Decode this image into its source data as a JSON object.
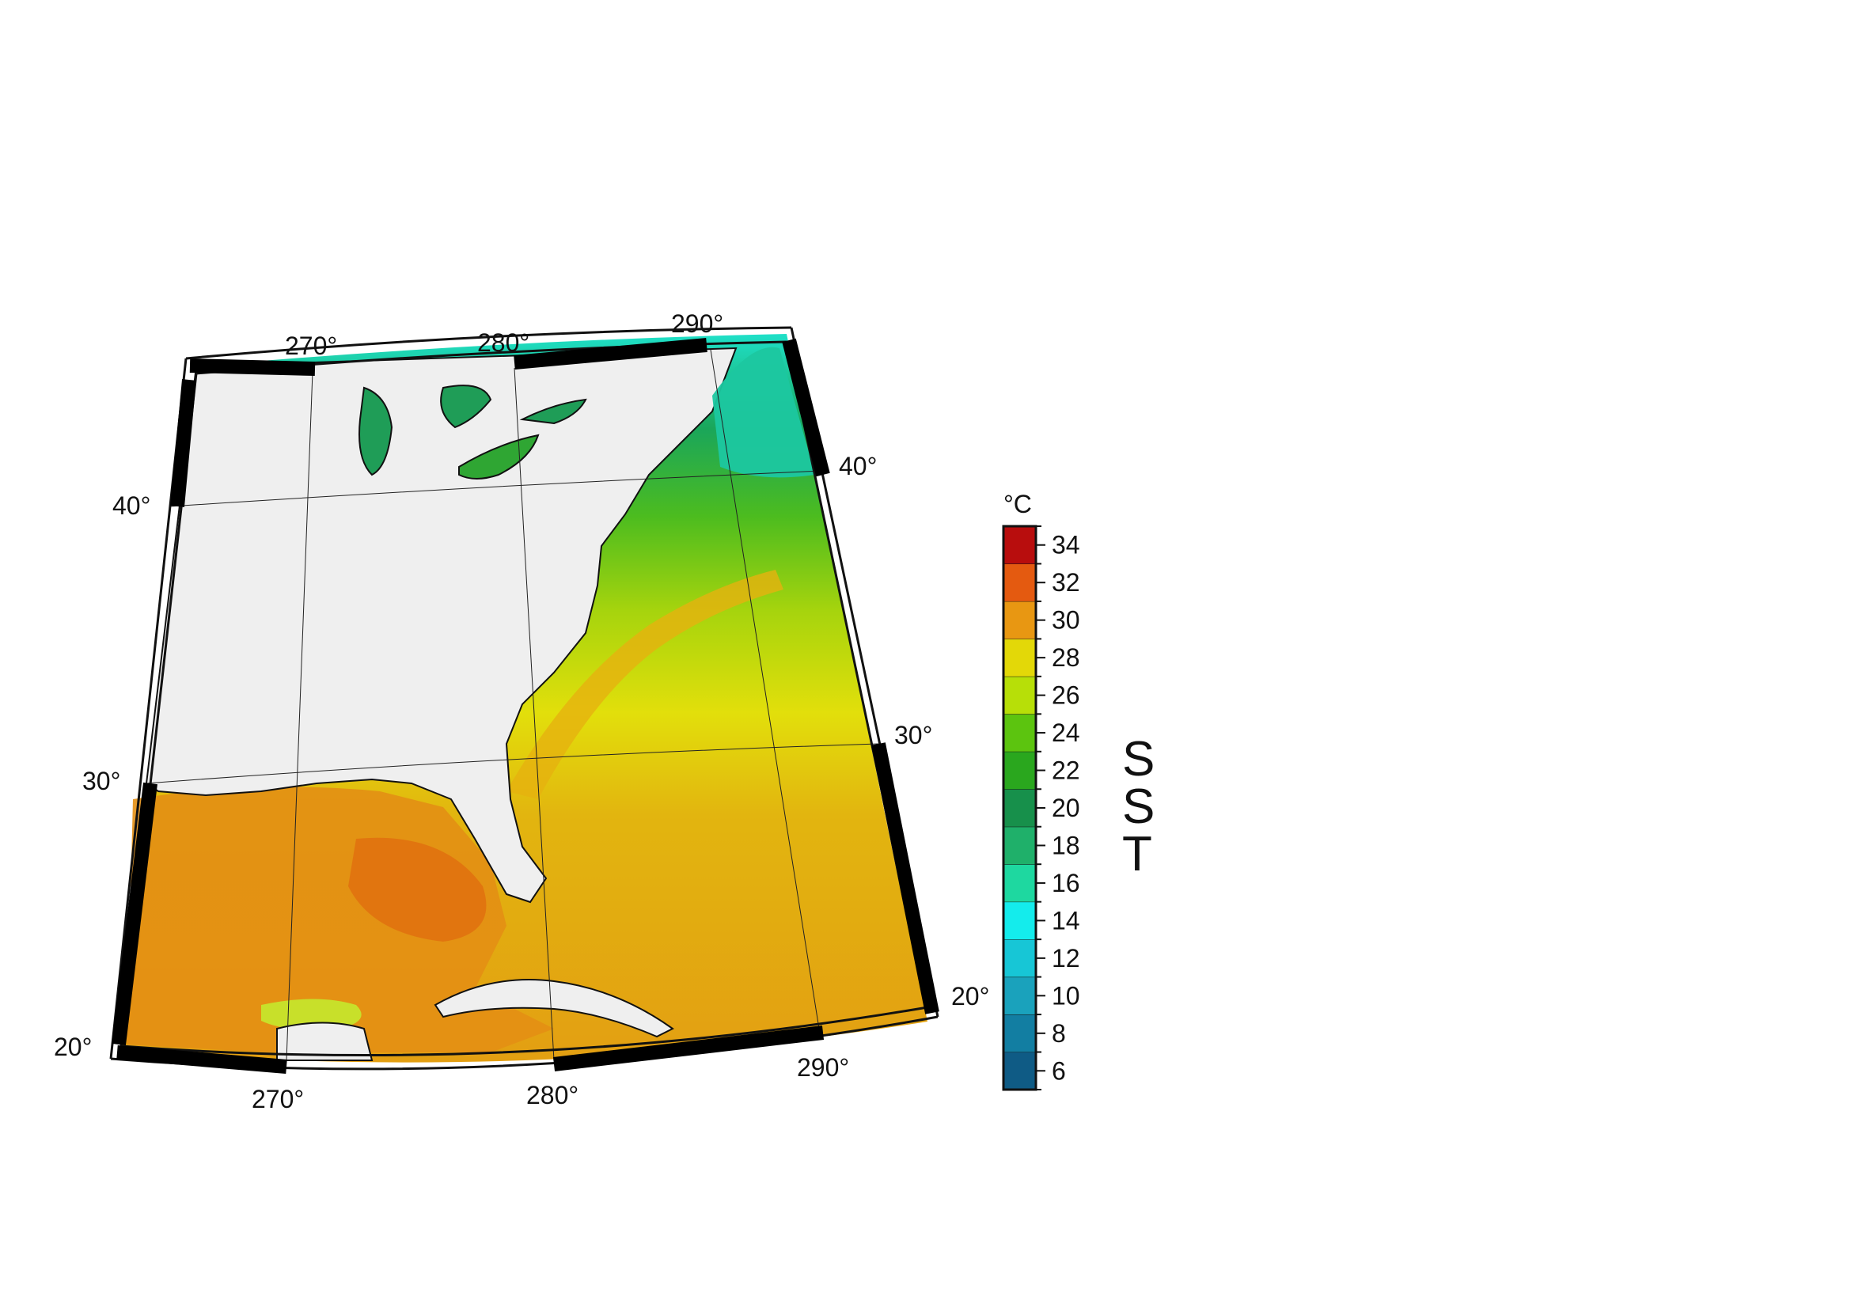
{
  "map": {
    "longitude_labels_top": [
      "270°",
      "280°",
      "290°"
    ],
    "longitude_labels_bottom": [
      "270°",
      "280°",
      "290°"
    ],
    "latitude_labels_left": [
      "40°",
      "30°",
      "20°"
    ],
    "latitude_labels_right": [
      "40°",
      "30°",
      "20°"
    ],
    "land_color": "#efefef",
    "coast_color": "#111111"
  },
  "colorbar": {
    "unit": "°C",
    "title_letters": [
      "S",
      "S",
      "T"
    ],
    "tick_labels": [
      "34",
      "32",
      "30",
      "28",
      "26",
      "24",
      "22",
      "20",
      "18",
      "16",
      "14",
      "12",
      "10",
      "8",
      "6"
    ],
    "min": 5,
    "max": 35,
    "colors": [
      {
        "from": 5,
        "to": 7,
        "color": "#0f5b85"
      },
      {
        "from": 7,
        "to": 9,
        "color": "#127ea2"
      },
      {
        "from": 9,
        "to": 11,
        "color": "#1aa2bc"
      },
      {
        "from": 11,
        "to": 13,
        "color": "#17c6d6"
      },
      {
        "from": 13,
        "to": 15,
        "color": "#14ecec"
      },
      {
        "from": 15,
        "to": 17,
        "color": "#1ed8a0"
      },
      {
        "from": 17,
        "to": 19,
        "color": "#1fb06a"
      },
      {
        "from": 19,
        "to": 21,
        "color": "#17904b"
      },
      {
        "from": 21,
        "to": 23,
        "color": "#2aa71e"
      },
      {
        "from": 23,
        "to": 25,
        "color": "#5cc40f"
      },
      {
        "from": 25,
        "to": 27,
        "color": "#b7df08"
      },
      {
        "from": 27,
        "to": 29,
        "color": "#e3d808"
      },
      {
        "from": 29,
        "to": 31,
        "color": "#e89712"
      },
      {
        "from": 31,
        "to": 33,
        "color": "#e45a10"
      },
      {
        "from": 33,
        "to": 35,
        "color": "#b80d0d"
      }
    ]
  }
}
